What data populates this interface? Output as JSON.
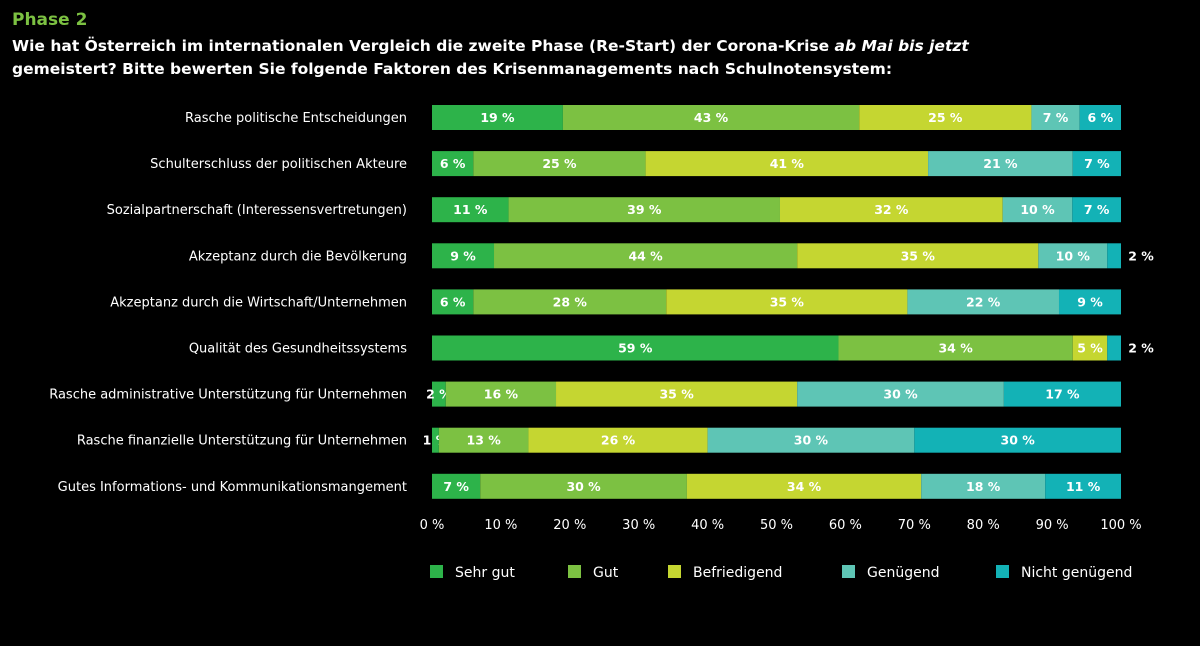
{
  "header": {
    "phase": "Phase 2",
    "title_part1": "Wie hat Österreich im internationalen Vergleich die zweite Phase (Re-Start) der Corona-Krise ",
    "title_italic": "ab Mai bis jetzt",
    "title_part2": "gemeistert? Bitte bewerten Sie folgende Faktoren des Krisenmanagements nach Schulnotensystem:"
  },
  "colors": {
    "background": "#000000",
    "phase_label": "#7cc142"
  },
  "chart_data": {
    "type": "bar",
    "orientation": "horizontal",
    "stacked": true,
    "xlim": [
      0,
      100
    ],
    "xticks": [
      0,
      10,
      20,
      30,
      40,
      50,
      60,
      70,
      80,
      90,
      100
    ],
    "tick_suffix": " %",
    "value_suffix": " %",
    "grid": false,
    "legend_position": "bottom",
    "categories": [
      "Rasche politische Entscheidungen",
      "Schulterschluss der politischen Akteure",
      "Sozialpartnerschaft (Interessensvertretungen)",
      "Akzeptanz durch die Bevölkerung",
      "Akzeptanz durch die Wirtschaft/Unternehmen",
      "Qualität des Gesundheitssystems",
      "Rasche administrative Unterstützung für Unternehmen",
      "Rasche finanzielle Unterstützung für Unternehmen",
      "Gutes Informations- und Kommunikationsmangement"
    ],
    "series": [
      {
        "name": "Sehr gut",
        "color": "#2db34a",
        "values": [
          19,
          6,
          11,
          9,
          6,
          59,
          2,
          1,
          7
        ]
      },
      {
        "name": "Gut",
        "color": "#7cc142",
        "values": [
          43,
          25,
          39,
          44,
          28,
          34,
          16,
          13,
          30
        ]
      },
      {
        "name": "Befriedigend",
        "color": "#c5d631",
        "values": [
          25,
          41,
          32,
          35,
          35,
          5,
          35,
          26,
          34
        ]
      },
      {
        "name": "Genügend",
        "color": "#5ec5b5",
        "values": [
          7,
          21,
          10,
          10,
          22,
          0,
          30,
          30,
          18
        ]
      },
      {
        "name": "Nicht genügend",
        "color": "#13b2b6",
        "values": [
          6,
          7,
          7,
          2,
          9,
          2,
          17,
          30,
          11
        ]
      }
    ],
    "outside_labels": [
      null,
      null,
      null,
      4,
      null,
      4,
      null,
      null,
      null
    ]
  }
}
